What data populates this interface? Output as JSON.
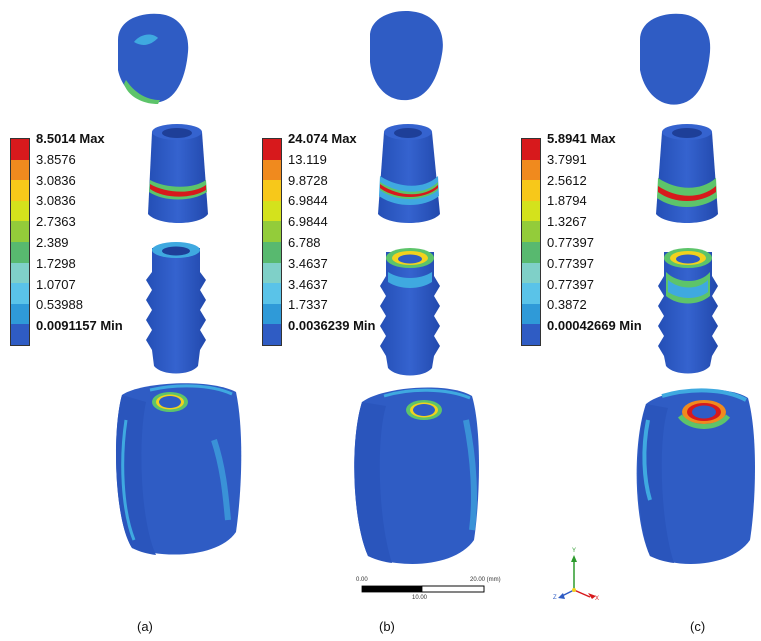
{
  "panels": [
    {
      "caption": "(a)",
      "legend": {
        "max": "8.5014 Max",
        "values": [
          "3.8576",
          "3.0836",
          "3.0836",
          "2.7363",
          "2.389",
          "1.7298",
          "1.0707",
          "0.53988"
        ],
        "min": "0.0091157 Min"
      }
    },
    {
      "caption": "(b)",
      "legend": {
        "max": "24.074 Max",
        "values": [
          "13.119",
          "9.8728",
          "6.9844",
          "6.9844",
          "6.788",
          "3.4637",
          "3.4637",
          "1.7337"
        ],
        "min": "0.0036239 Min"
      }
    },
    {
      "caption": "(c)",
      "legend": {
        "max": "5.8941 Max",
        "values": [
          "3.7991",
          "2.5612",
          "1.8794",
          "1.3267",
          "0.77397",
          "0.77397",
          "0.77397",
          "0.3872"
        ],
        "min": "0.00042669 Min"
      }
    }
  ],
  "legend_colors": [
    "#d7191c",
    "#f08a1e",
    "#f7c81a",
    "#d4e21c",
    "#93cc3a",
    "#58b96f",
    "#7fd0c8",
    "#5ac3e8",
    "#2f9ad8",
    "#2f5cc4"
  ],
  "model_colors": {
    "base": "#2f5cc4",
    "cyan": "#3fa9e0",
    "green": "#5dc46a",
    "yellow": "#f2d21e",
    "red": "#d7191c"
  },
  "scale_bar": {
    "left": "0.00",
    "right": "20.00 (mm)",
    "middle": "10.00"
  },
  "triad": {
    "y": "Y",
    "x": "X",
    "z": "Z"
  }
}
